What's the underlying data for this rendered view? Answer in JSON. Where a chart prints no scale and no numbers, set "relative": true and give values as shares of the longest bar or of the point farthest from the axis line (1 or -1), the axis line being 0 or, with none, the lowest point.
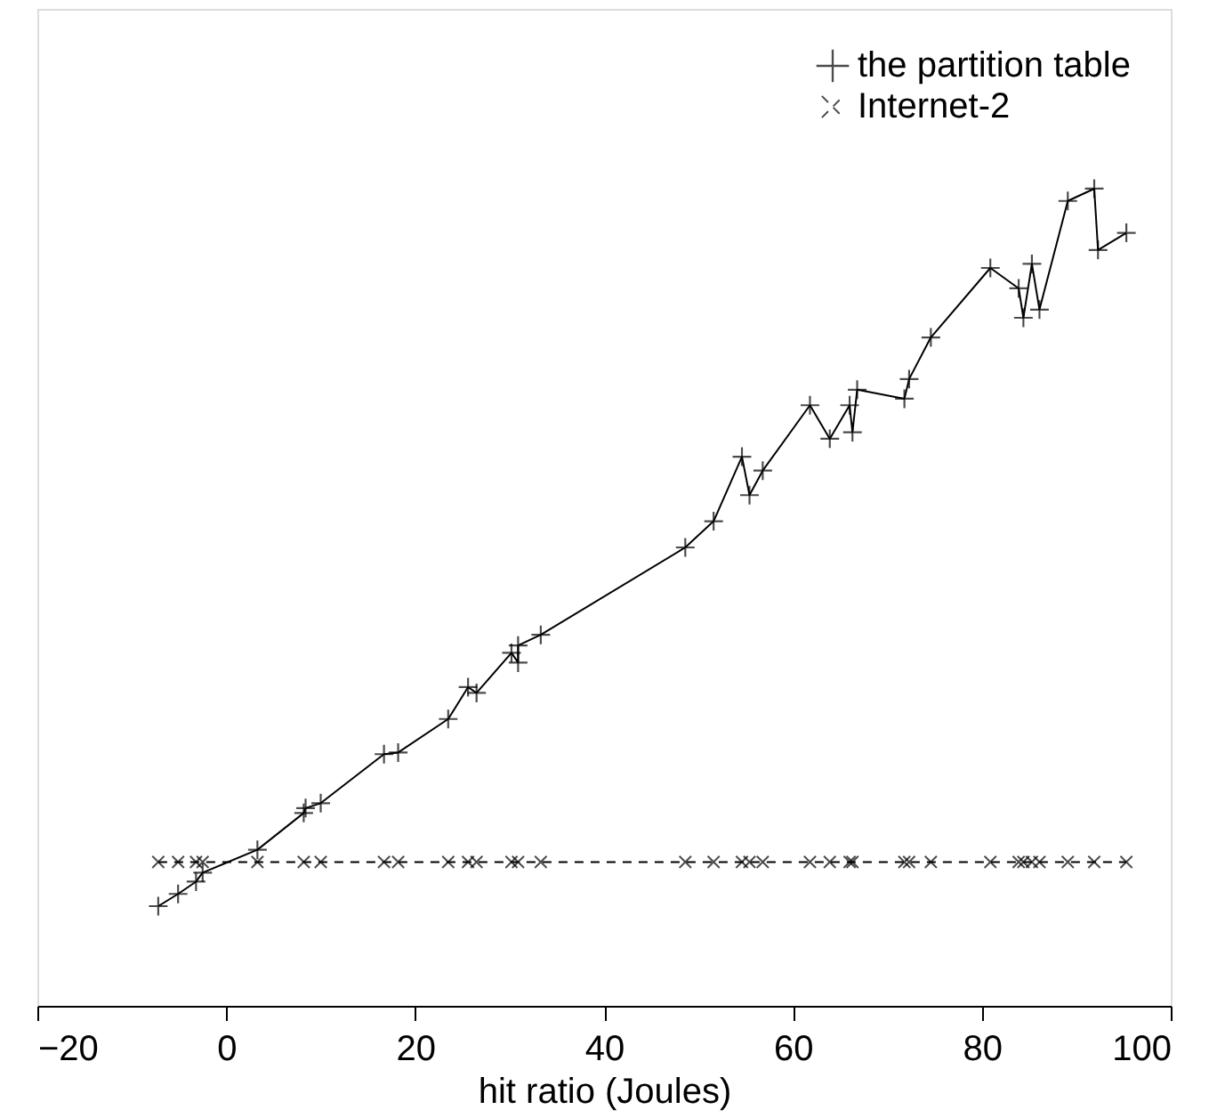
{
  "chart_data": {
    "type": "line",
    "xlabel": "hit ratio (Joules)",
    "relative": true,
    "xlim": [
      -20,
      100
    ],
    "xticks": [
      -20,
      0,
      20,
      40,
      60,
      80,
      100
    ],
    "grid": false,
    "legend": "top right",
    "series": [
      {
        "name": "the partition table",
        "color": "#000000",
        "marker": "cross",
        "line_style": "solid",
        "x": [
          -7.2,
          -5.1,
          -3.2,
          -2.5,
          3.3,
          8.2,
          8.4,
          10.0,
          16.7,
          18.2,
          23.5,
          25.6,
          26.5,
          30.2,
          30.9,
          30.9,
          33.3,
          48.6,
          51.6,
          54.6,
          55.4,
          56.8,
          61.8,
          63.9,
          66.0,
          66.3,
          66.8,
          71.8,
          72.3,
          74.6,
          80.9,
          83.9,
          84.4,
          85.3,
          86.1,
          89.1,
          91.9,
          92.3,
          95.3
        ],
        "values": [
          0.122,
          0.137,
          0.152,
          0.163,
          0.191,
          0.236,
          0.242,
          0.248,
          0.308,
          0.31,
          0.351,
          0.39,
          0.383,
          0.432,
          0.42,
          0.441,
          0.454,
          0.561,
          0.593,
          0.672,
          0.625,
          0.655,
          0.735,
          0.694,
          0.735,
          0.702,
          0.754,
          0.743,
          0.767,
          0.818,
          0.903,
          0.878,
          0.842,
          0.908,
          0.852,
          0.985,
          1.0,
          0.925,
          0.946
        ]
      },
      {
        "name": "Internet-2",
        "color": "#000000",
        "marker": "x",
        "line_style": "dashed",
        "x": [
          -7.2,
          -5.1,
          -3.2,
          -2.5,
          3.3,
          8.2,
          10.0,
          16.7,
          18.2,
          23.5,
          25.6,
          26.5,
          30.2,
          30.9,
          33.3,
          48.6,
          51.6,
          54.6,
          55.4,
          56.8,
          61.8,
          63.9,
          66.0,
          66.3,
          71.8,
          72.3,
          74.6,
          80.9,
          83.9,
          84.4,
          85.3,
          86.1,
          89.1,
          91.9,
          95.3
        ],
        "values": [
          0.176,
          0.176,
          0.176,
          0.176,
          0.176,
          0.176,
          0.176,
          0.176,
          0.176,
          0.176,
          0.176,
          0.176,
          0.176,
          0.176,
          0.176,
          0.176,
          0.176,
          0.176,
          0.176,
          0.176,
          0.176,
          0.176,
          0.176,
          0.176,
          0.176,
          0.176,
          0.176,
          0.176,
          0.176,
          0.176,
          0.176,
          0.176,
          0.176,
          0.176,
          0.176
        ]
      }
    ]
  }
}
